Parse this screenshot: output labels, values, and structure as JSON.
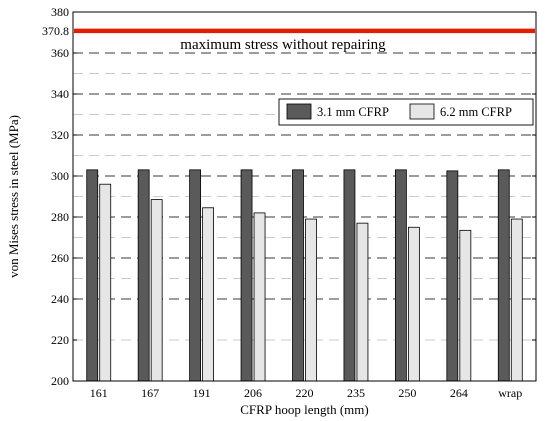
{
  "chart_data": {
    "type": "bar",
    "xlabel": "CFRP hoop length (mm)",
    "ylabel": "von Mises stress in steel (MPa)",
    "categories": [
      "161",
      "167",
      "191",
      "206",
      "220",
      "235",
      "250",
      "264",
      "wrap"
    ],
    "series": [
      {
        "name": "3.1 mm CFRP",
        "color": "#5a5a5a",
        "values": [
          303,
          303,
          303,
          303,
          303,
          303,
          303,
          302.5,
          303
        ]
      },
      {
        "name": "6.2 mm CFRP",
        "color": "#e6e6e6",
        "values": [
          296,
          288.5,
          284.5,
          282,
          279,
          277,
          275,
          273.5,
          279
        ]
      }
    ],
    "ylim": [
      200,
      380
    ],
    "yticks": [
      200,
      220,
      240,
      260,
      280,
      300,
      320,
      340,
      360,
      380
    ],
    "gridlines": {
      "major_dashed": [
        240,
        260,
        280,
        300,
        320,
        340,
        360
      ],
      "minor_light": [
        220,
        250,
        270,
        290,
        310,
        330,
        350,
        370
      ]
    },
    "reference_line": {
      "value": 370.8,
      "label": "370.8",
      "annotation": "maximum stress without repairing",
      "color": "#e02000"
    },
    "legend": {
      "position": "upper-right"
    }
  }
}
